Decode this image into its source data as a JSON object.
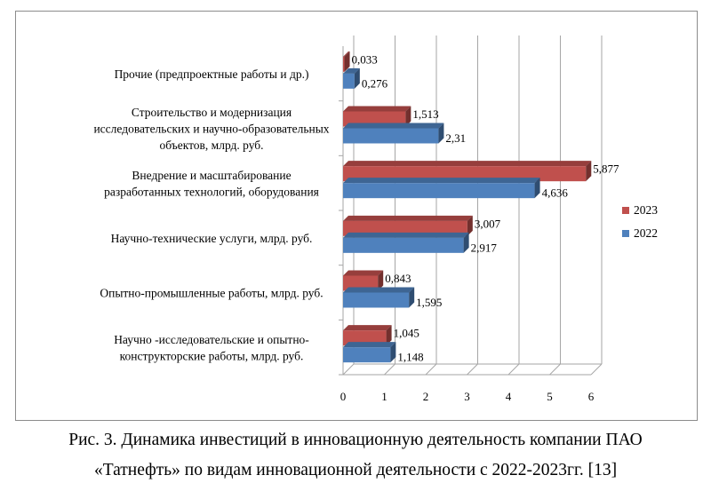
{
  "chart_data": {
    "type": "bar",
    "orientation": "horizontal",
    "categories": [
      [
        "Научно -исследовательские и опытно-",
        "конструкторские работы, млрд. руб."
      ],
      [
        "Опытно-промышленные работы, млрд. руб."
      ],
      [
        "Научно-технические услуги, млрд. руб."
      ],
      [
        "Внедрение и масштабирование",
        "разработанных технологий, оборудования"
      ],
      [
        "Строительство и модернизация",
        "исследовательских и научно-образовательных",
        "объектов, млрд. руб."
      ],
      [
        "Прочие (предпроектные работы и др.)"
      ]
    ],
    "series": [
      {
        "name": "2023",
        "color": "#c0504d",
        "values": [
          1.045,
          0.843,
          3.007,
          5.877,
          1.513,
          0.033
        ],
        "labels": [
          "1,045",
          "0,843",
          "3,007",
          "5,877",
          "1,513",
          "0,033"
        ]
      },
      {
        "name": "2022",
        "color": "#4f81bd",
        "values": [
          1.148,
          1.595,
          2.917,
          4.636,
          2.31,
          0.276
        ],
        "labels": [
          "1,148",
          "1,595",
          "2,917",
          "4,636",
          "2,31",
          "0,276"
        ]
      }
    ],
    "xlim": [
      0,
      6
    ],
    "xticks": [
      "0",
      "1",
      "2",
      "3",
      "4",
      "5",
      "6"
    ],
    "grid": true,
    "legend_position": "right",
    "style": "3d"
  },
  "caption": {
    "line1": "Рис. 3. Динамика инвестиций в инновационную деятельность компании ПАО",
    "line2": "«Татнефть» по видам инновационной деятельности с 2022-2023гг. [13]"
  }
}
